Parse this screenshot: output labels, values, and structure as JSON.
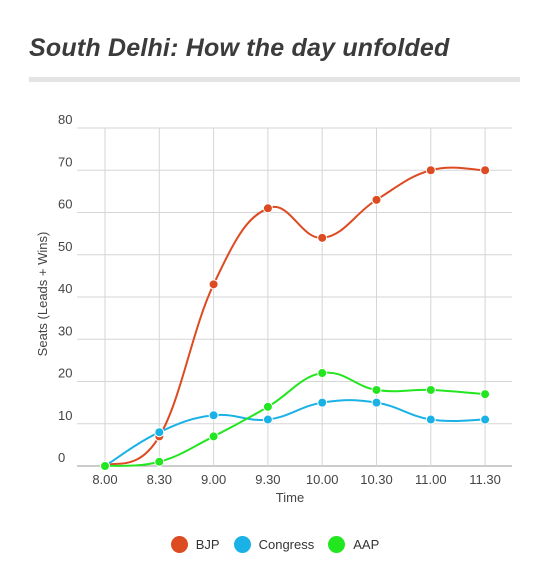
{
  "chart_data": {
    "type": "line",
    "title": "South Delhi: How the day unfolded",
    "xlabel": "Time",
    "ylabel": "Seats (Leads + Wins)",
    "categories": [
      "8.00",
      "8.30",
      "9.00",
      "9.30",
      "10.00",
      "10.30",
      "11.00",
      "11.30"
    ],
    "ylim": [
      0,
      80
    ],
    "yticks": [
      "0",
      "10",
      "20",
      "30",
      "40",
      "50",
      "60",
      "70",
      "80"
    ],
    "grid": true,
    "smooth": true,
    "legend_position": "bottom",
    "series": [
      {
        "name": "BJP",
        "color": "#dd4b22",
        "values": [
          0,
          7,
          43,
          61,
          54,
          63,
          70,
          70
        ]
      },
      {
        "name": "Congress",
        "color": "#1ab1e6",
        "values": [
          0,
          8,
          12,
          11,
          15,
          15,
          11,
          11
        ]
      },
      {
        "name": "AAP",
        "color": "#22e61f",
        "values": [
          0,
          1,
          7,
          14,
          22,
          18,
          18,
          17
        ]
      }
    ]
  }
}
